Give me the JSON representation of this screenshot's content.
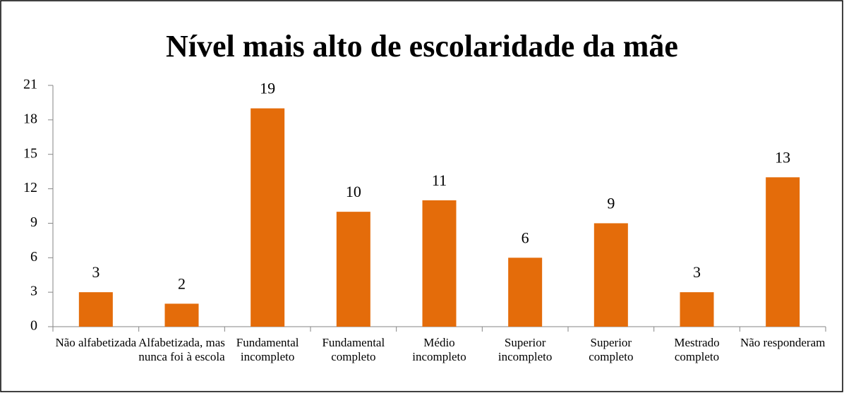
{
  "chart_data": {
    "type": "bar",
    "title": "Nível mais alto de escolaridade da mãe",
    "categories": [
      "Não alfabetizada",
      "Alfabetizada, mas nunca foi à escola",
      "Fundamental incompleto",
      "Fundamental completo",
      "Médio incompleto",
      "Superior incompleto",
      "Superior completo",
      "Mestrado completo",
      "Não responderam"
    ],
    "values": [
      3,
      2,
      19,
      10,
      11,
      6,
      9,
      3,
      13
    ],
    "color": "#e46c0a",
    "ylim": [
      0,
      21
    ],
    "yticks": [
      0,
      3,
      6,
      9,
      12,
      15,
      18,
      21
    ],
    "grid": false
  }
}
